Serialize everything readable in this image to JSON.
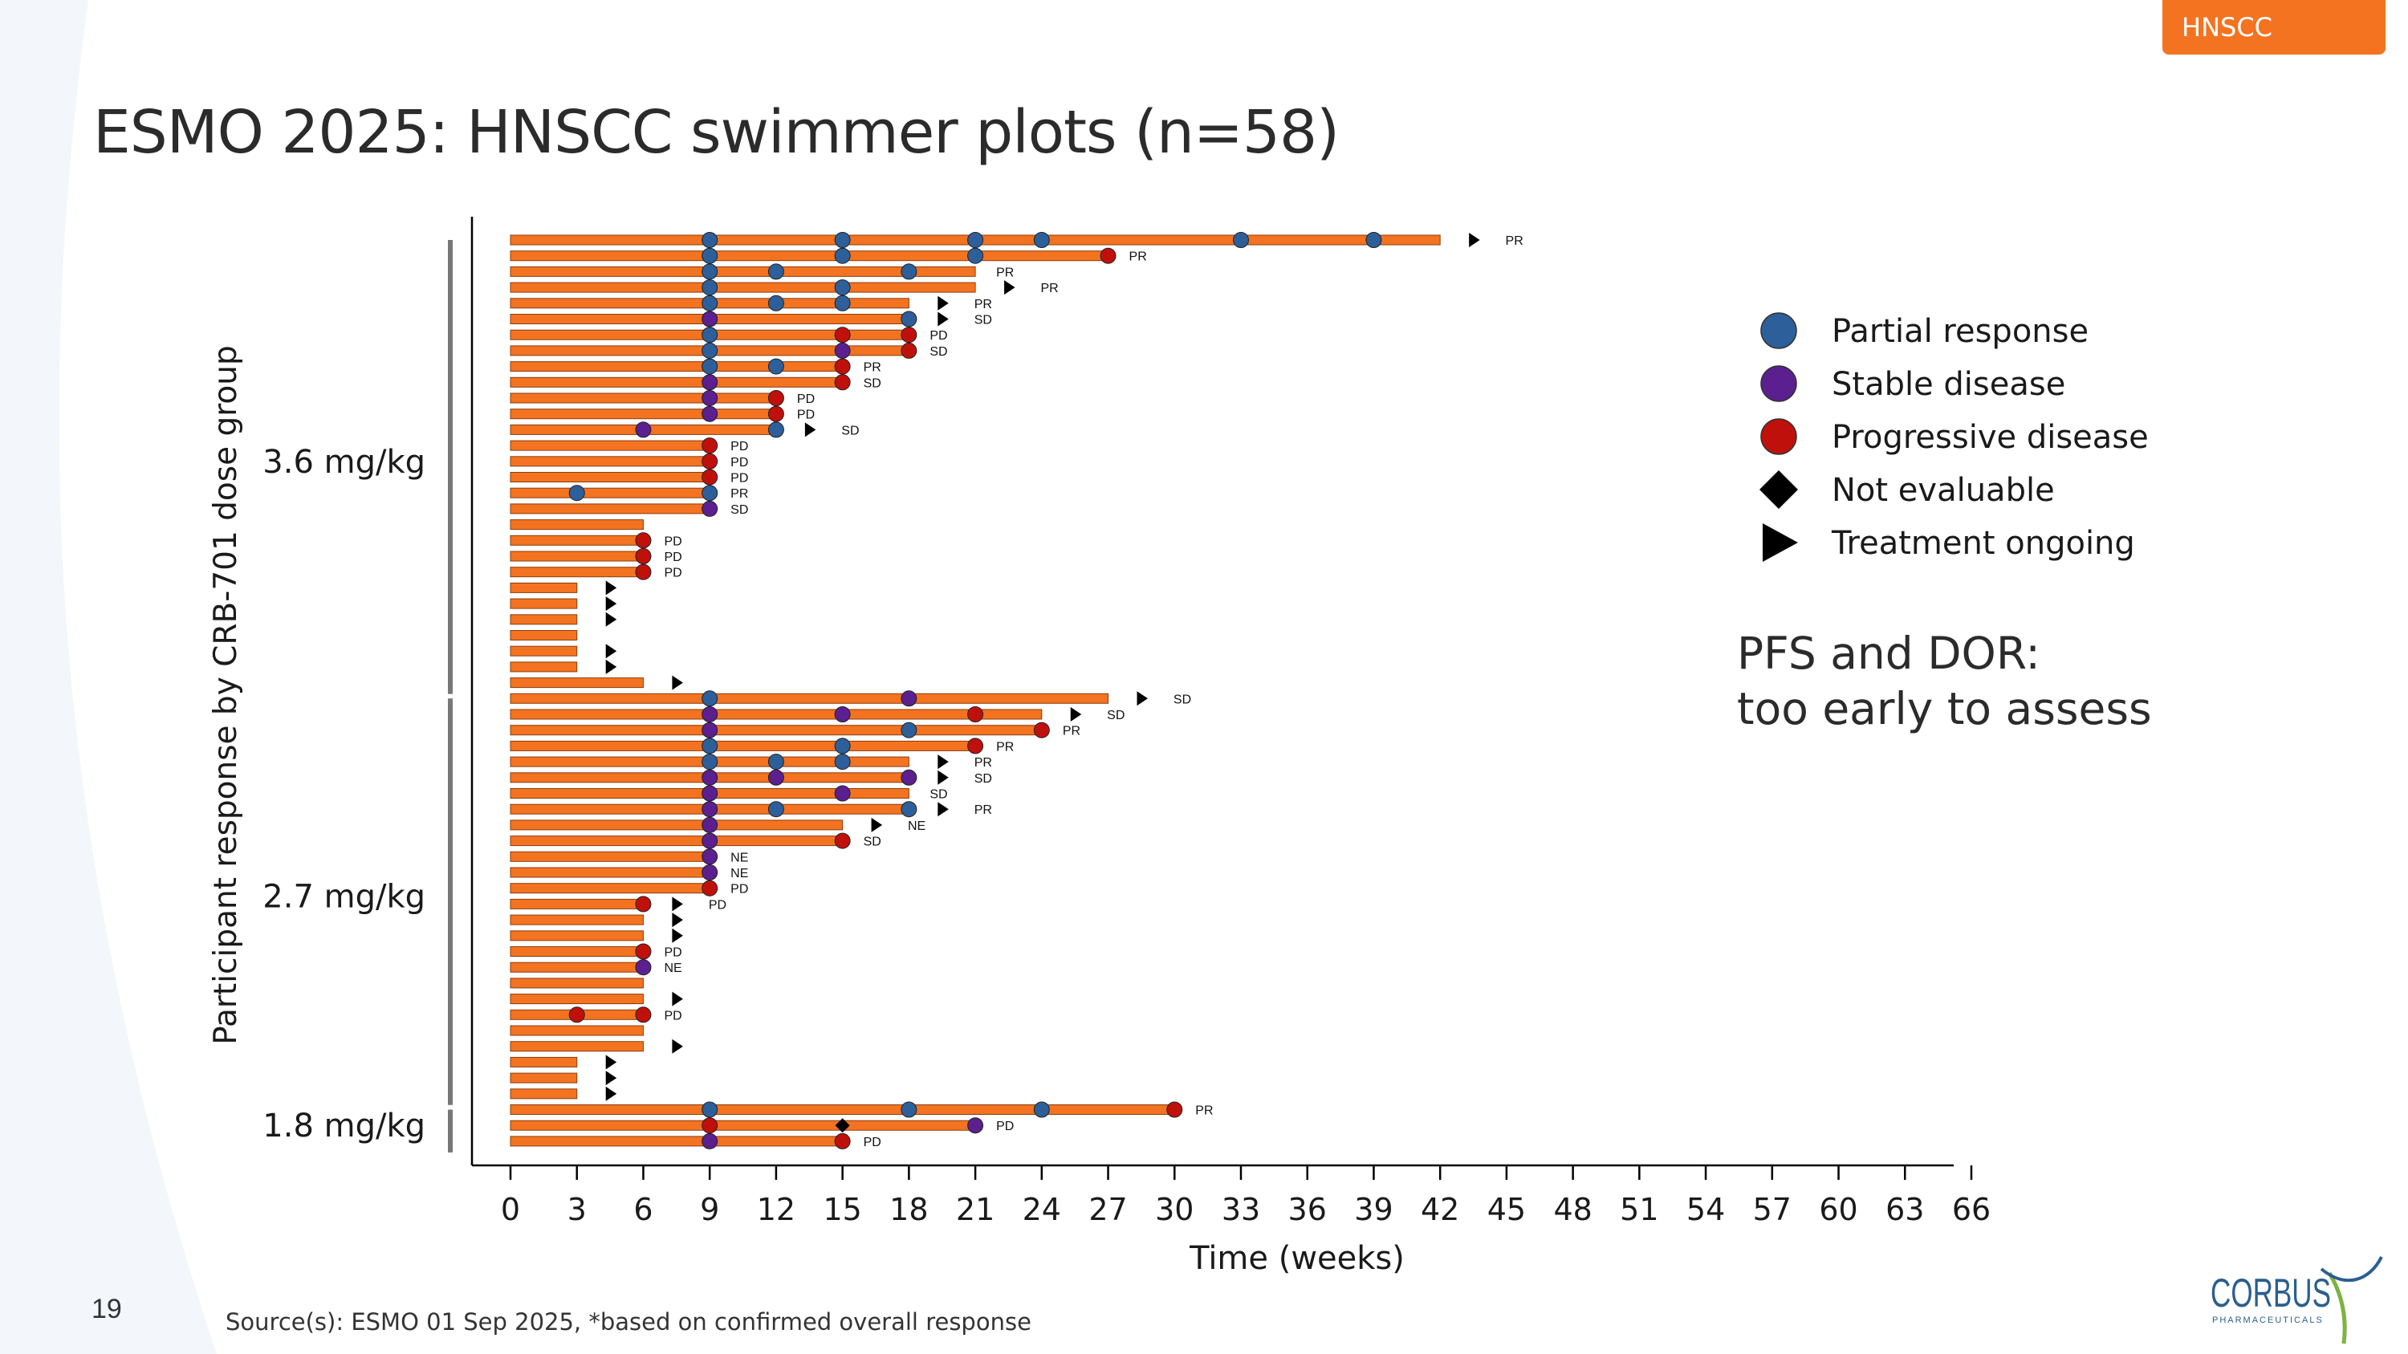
{
  "header": {
    "tag": "HNSCC",
    "title": "ESMO 2025: HNSCC swimmer plots (n=58)"
  },
  "footer": {
    "page_number": "19",
    "source": "Source(s): ESMO 01 Sep 2025,  *based on confirmed overall response"
  },
  "brand": {
    "name": "CORBUS",
    "subtitle": "PHARMACEUTICALS",
    "color": "#2b5f8e",
    "accent": "#7cb342"
  },
  "colors": {
    "bar": "#f47320",
    "bar_edge": "#8a3d0f",
    "PR": "#2d5f9a",
    "SD": "#5b1f8f",
    "PD": "#c0100c",
    "NE": "#000000",
    "ongoing": "#000000",
    "accent": "#f47320"
  },
  "annotation": {
    "line1": "PFS and DOR:",
    "line2": "too early to assess"
  },
  "chart_data": {
    "type": "swimmer",
    "xlabel": "Time (weeks)",
    "ylabel": "Participant response by CRB-701 dose group",
    "xlim": [
      0,
      66
    ],
    "xticks": [
      0,
      3,
      6,
      9,
      12,
      15,
      18,
      21,
      24,
      27,
      30,
      33,
      36,
      39,
      42,
      45,
      48,
      51,
      54,
      57,
      60,
      63,
      66
    ],
    "legend": {
      "position": "right",
      "items": [
        {
          "key": "PR",
          "label": "Partial response",
          "shape": "circle"
        },
        {
          "key": "SD",
          "label": "Stable disease",
          "shape": "circle"
        },
        {
          "key": "PD",
          "label": "Progressive disease",
          "shape": "circle"
        },
        {
          "key": "NE",
          "label": "Not evaluable",
          "shape": "diamond"
        },
        {
          "key": "ongoing",
          "label": "Treatment ongoing",
          "shape": "triangle"
        }
      ]
    },
    "groups": [
      {
        "label": "3.6 mg/kg",
        "participants": [
          {
            "end": 42,
            "ongoing": 43.5,
            "best": "PR",
            "events": [
              [
                9,
                "PR"
              ],
              [
                15,
                "PR"
              ],
              [
                21,
                "PR"
              ],
              [
                24,
                "PR"
              ],
              [
                33,
                "PR"
              ],
              [
                39,
                "PR"
              ]
            ]
          },
          {
            "end": 27,
            "ongoing": null,
            "best": "PR",
            "events": [
              [
                9,
                "PR"
              ],
              [
                15,
                "PR"
              ],
              [
                21,
                "PR"
              ],
              [
                27,
                "PD"
              ]
            ]
          },
          {
            "end": 21,
            "ongoing": null,
            "best": "PR",
            "events": [
              [
                9,
                "PR"
              ],
              [
                12,
                "PR"
              ],
              [
                18,
                "PR"
              ]
            ]
          },
          {
            "end": 21,
            "ongoing": 22.5,
            "best": "PR",
            "events": [
              [
                9,
                "PR"
              ],
              [
                15,
                "PR"
              ]
            ]
          },
          {
            "end": 18,
            "ongoing": 19.5,
            "best": "PR",
            "events": [
              [
                9,
                "PR"
              ],
              [
                12,
                "PR"
              ],
              [
                15,
                "PR"
              ]
            ]
          },
          {
            "end": 18,
            "ongoing": 19.5,
            "best": "SD",
            "events": [
              [
                9,
                "SD"
              ],
              [
                18,
                "PR"
              ]
            ]
          },
          {
            "end": 18,
            "ongoing": null,
            "best": "PD",
            "events": [
              [
                9,
                "PR"
              ],
              [
                15,
                "PD"
              ],
              [
                18,
                "PD"
              ]
            ]
          },
          {
            "end": 18,
            "ongoing": null,
            "best": "SD",
            "events": [
              [
                9,
                "PR"
              ],
              [
                15,
                "SD"
              ],
              [
                18,
                "PD"
              ]
            ]
          },
          {
            "end": 15,
            "ongoing": null,
            "best": "PR",
            "events": [
              [
                9,
                "PR"
              ],
              [
                12,
                "PR"
              ],
              [
                15,
                "PD"
              ]
            ]
          },
          {
            "end": 15,
            "ongoing": null,
            "best": "SD",
            "events": [
              [
                9,
                "SD"
              ],
              [
                15,
                "PD"
              ]
            ]
          },
          {
            "end": 12,
            "ongoing": null,
            "best": "PD",
            "events": [
              [
                9,
                "SD"
              ],
              [
                12,
                "PD"
              ]
            ]
          },
          {
            "end": 12,
            "ongoing": null,
            "best": "PD",
            "events": [
              [
                9,
                "SD"
              ],
              [
                12,
                "PD"
              ]
            ]
          },
          {
            "end": 12,
            "ongoing": 13.5,
            "best": "SD",
            "events": [
              [
                6,
                "SD"
              ],
              [
                12,
                "PR"
              ]
            ]
          },
          {
            "end": 9,
            "ongoing": null,
            "best": "PD",
            "events": [
              [
                9,
                "PD"
              ]
            ]
          },
          {
            "end": 9,
            "ongoing": null,
            "best": "PD",
            "events": [
              [
                9,
                "PD"
              ]
            ]
          },
          {
            "end": 9,
            "ongoing": null,
            "best": "PD",
            "events": [
              [
                9,
                "PD"
              ]
            ]
          },
          {
            "end": 9,
            "ongoing": null,
            "best": "PR",
            "events": [
              [
                3,
                "PR"
              ],
              [
                9,
                "PR"
              ]
            ]
          },
          {
            "end": 9,
            "ongoing": null,
            "best": "SD",
            "events": [
              [
                9,
                "SD"
              ]
            ]
          },
          {
            "end": 6,
            "ongoing": null,
            "best": null,
            "events": []
          },
          {
            "end": 6,
            "ongoing": null,
            "best": "PD",
            "events": [
              [
                6,
                "PD"
              ]
            ]
          },
          {
            "end": 6,
            "ongoing": null,
            "best": "PD",
            "events": [
              [
                6,
                "PD"
              ]
            ]
          },
          {
            "end": 6,
            "ongoing": null,
            "best": "PD",
            "events": [
              [
                6,
                "PD"
              ]
            ]
          },
          {
            "end": 3,
            "ongoing": 4.5,
            "best": null,
            "events": []
          },
          {
            "end": 3,
            "ongoing": 4.5,
            "best": null,
            "events": []
          },
          {
            "end": 3,
            "ongoing": 4.5,
            "best": null,
            "events": []
          },
          {
            "end": 3,
            "ongoing": null,
            "best": null,
            "events": []
          },
          {
            "end": 3,
            "ongoing": 4.5,
            "best": null,
            "events": []
          },
          {
            "end": 3,
            "ongoing": 4.5,
            "best": null,
            "events": []
          },
          {
            "end": 6,
            "ongoing": 7.5,
            "best": null,
            "events": []
          }
        ]
      },
      {
        "label": "2.7 mg/kg",
        "participants": [
          {
            "end": 27,
            "ongoing": 28.5,
            "best": "SD",
            "events": [
              [
                9,
                "PR"
              ],
              [
                18,
                "SD"
              ]
            ]
          },
          {
            "end": 24,
            "ongoing": 25.5,
            "best": "SD",
            "events": [
              [
                9,
                "SD"
              ],
              [
                15,
                "SD"
              ],
              [
                21,
                "PD"
              ]
            ]
          },
          {
            "end": 24,
            "ongoing": null,
            "best": "PR",
            "events": [
              [
                9,
                "SD"
              ],
              [
                18,
                "PR"
              ],
              [
                24,
                "PD"
              ]
            ]
          },
          {
            "end": 21,
            "ongoing": null,
            "best": "PR",
            "events": [
              [
                9,
                "PR"
              ],
              [
                15,
                "PR"
              ],
              [
                21,
                "PD"
              ]
            ]
          },
          {
            "end": 18,
            "ongoing": 19.5,
            "best": "PR",
            "events": [
              [
                9,
                "PR"
              ],
              [
                12,
                "PR"
              ],
              [
                15,
                "PR"
              ]
            ]
          },
          {
            "end": 18,
            "ongoing": 19.5,
            "best": "SD",
            "events": [
              [
                9,
                "SD"
              ],
              [
                12,
                "SD"
              ],
              [
                18,
                "SD"
              ]
            ]
          },
          {
            "end": 18,
            "ongoing": null,
            "best": "SD",
            "events": [
              [
                9,
                "SD"
              ],
              [
                15,
                "SD"
              ]
            ]
          },
          {
            "end": 18,
            "ongoing": 19.5,
            "best": "PR",
            "events": [
              [
                9,
                "SD"
              ],
              [
                12,
                "PR"
              ],
              [
                18,
                "PR"
              ]
            ]
          },
          {
            "end": 15,
            "ongoing": 16.5,
            "best": "NE",
            "events": [
              [
                9,
                "SD"
              ]
            ]
          },
          {
            "end": 15,
            "ongoing": null,
            "best": "SD",
            "events": [
              [
                9,
                "SD"
              ],
              [
                15,
                "PD"
              ]
            ]
          },
          {
            "end": 9,
            "ongoing": null,
            "best": "NE",
            "events": [
              [
                9,
                "SD"
              ]
            ]
          },
          {
            "end": 9,
            "ongoing": null,
            "best": "NE",
            "events": [
              [
                9,
                "SD"
              ]
            ]
          },
          {
            "end": 9,
            "ongoing": null,
            "best": "PD",
            "events": [
              [
                9,
                "PD"
              ]
            ]
          },
          {
            "end": 6,
            "ongoing": 7.5,
            "best": "PD",
            "events": [
              [
                6,
                "PD"
              ]
            ]
          },
          {
            "end": 6,
            "ongoing": 7.5,
            "best": null,
            "events": []
          },
          {
            "end": 6,
            "ongoing": 7.5,
            "best": null,
            "events": []
          },
          {
            "end": 6,
            "ongoing": null,
            "best": "PD",
            "events": [
              [
                6,
                "PD"
              ]
            ]
          },
          {
            "end": 6,
            "ongoing": null,
            "best": "NE",
            "events": [
              [
                6,
                "SD"
              ]
            ]
          },
          {
            "end": 6,
            "ongoing": null,
            "best": null,
            "events": []
          },
          {
            "end": 6,
            "ongoing": 7.5,
            "best": null,
            "events": []
          },
          {
            "end": 6,
            "ongoing": null,
            "best": "PD",
            "events": [
              [
                3,
                "PD"
              ],
              [
                6,
                "PD"
              ]
            ]
          },
          {
            "end": 6,
            "ongoing": null,
            "best": null,
            "events": []
          },
          {
            "end": 6,
            "ongoing": 7.5,
            "best": null,
            "events": []
          },
          {
            "end": 3,
            "ongoing": 4.5,
            "best": null,
            "events": []
          },
          {
            "end": 3,
            "ongoing": 4.5,
            "best": null,
            "events": []
          },
          {
            "end": 3,
            "ongoing": 4.5,
            "best": null,
            "events": []
          }
        ]
      },
      {
        "label": "1.8 mg/kg",
        "participants": [
          {
            "end": 30,
            "ongoing": null,
            "best": "PR",
            "events": [
              [
                9,
                "PR"
              ],
              [
                18,
                "PR"
              ],
              [
                24,
                "PR"
              ],
              [
                30,
                "PD"
              ]
            ]
          },
          {
            "end": 21,
            "ongoing": null,
            "best": "PD",
            "events": [
              [
                9,
                "PD"
              ],
              [
                15,
                "NE"
              ],
              [
                21,
                "SD"
              ]
            ]
          },
          {
            "end": 15,
            "ongoing": null,
            "best": "PD",
            "events": [
              [
                9,
                "SD"
              ],
              [
                15,
                "PD"
              ]
            ]
          }
        ]
      }
    ]
  }
}
